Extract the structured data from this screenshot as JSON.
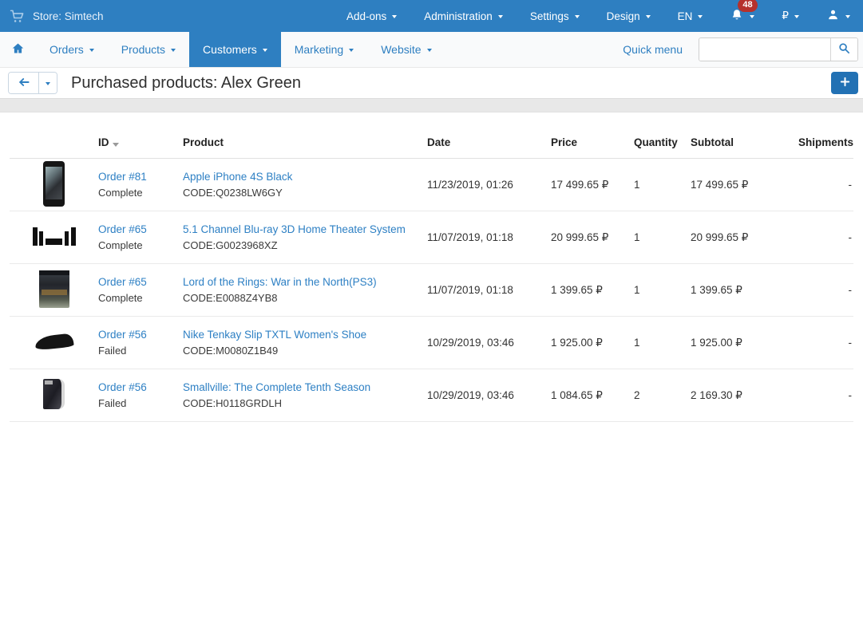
{
  "colors": {
    "accent": "#2e7fc1",
    "accent-dark": "#2271b4",
    "link": "#2e80c4",
    "badge": "#b5312c"
  },
  "topbar": {
    "store_label": "Store: Simtech",
    "menus": [
      "Add-ons",
      "Administration",
      "Settings",
      "Design",
      "EN"
    ],
    "notification_count": "48",
    "currency": "₽"
  },
  "navbar": {
    "items": [
      {
        "label": "Orders",
        "active": false
      },
      {
        "label": "Products",
        "active": false
      },
      {
        "label": "Customers",
        "active": true
      },
      {
        "label": "Marketing",
        "active": false
      },
      {
        "label": "Website",
        "active": false
      }
    ],
    "quick_menu_label": "Quick menu",
    "search_value": ""
  },
  "title_bar": {
    "title": "Purchased products: Alex Green"
  },
  "table": {
    "headers": [
      {
        "label": "ID",
        "sorted": true
      },
      {
        "label": "Product",
        "sorted": false
      },
      {
        "label": "Date",
        "sorted": false
      },
      {
        "label": "Price",
        "sorted": false
      },
      {
        "label": "Quantity",
        "sorted": false
      },
      {
        "label": "Subtotal",
        "sorted": false
      },
      {
        "label": "Shipments",
        "sorted": false
      }
    ],
    "rows": [
      {
        "image": "iphone",
        "order": "Order #81",
        "status": "Complete",
        "product": "Apple iPhone 4S Black",
        "code": "CODE:Q0238LW6GY",
        "date": "11/23/2019, 01:26",
        "price": "17 499.65 ₽",
        "quantity": "1",
        "subtotal": "17 499.65 ₽",
        "shipments": "-"
      },
      {
        "image": "home-theater",
        "order": "Order #65",
        "status": "Complete",
        "product": "5.1 Channel Blu-ray 3D Home Theater System",
        "code": "CODE:G0023968XZ",
        "date": "11/07/2019, 01:18",
        "price": "20 999.65 ₽",
        "quantity": "1",
        "subtotal": "20 999.65 ₽",
        "shipments": "-"
      },
      {
        "image": "lotr",
        "order": "Order #65",
        "status": "Complete",
        "product": "Lord of the Rings: War in the North(PS3)",
        "code": "CODE:E0088Z4YB8",
        "date": "11/07/2019, 01:18",
        "price": "1 399.65 ₽",
        "quantity": "1",
        "subtotal": "1 399.65 ₽",
        "shipments": "-"
      },
      {
        "image": "shoe",
        "order": "Order #56",
        "status": "Failed",
        "product": "Nike Tenkay Slip TXTL Women's Shoe",
        "code": "CODE:M0080Z1B49",
        "date": "10/29/2019, 03:46",
        "price": "1 925.00 ₽",
        "quantity": "1",
        "subtotal": "1 925.00 ₽",
        "shipments": "-"
      },
      {
        "image": "dvd",
        "order": "Order #56",
        "status": "Failed",
        "product": "Smallville: The Complete Tenth Season",
        "code": "CODE:H0118GRDLH",
        "date": "10/29/2019, 03:46",
        "price": "1 084.65 ₽",
        "quantity": "2",
        "subtotal": "2 169.30 ₽",
        "shipments": "-"
      }
    ]
  }
}
